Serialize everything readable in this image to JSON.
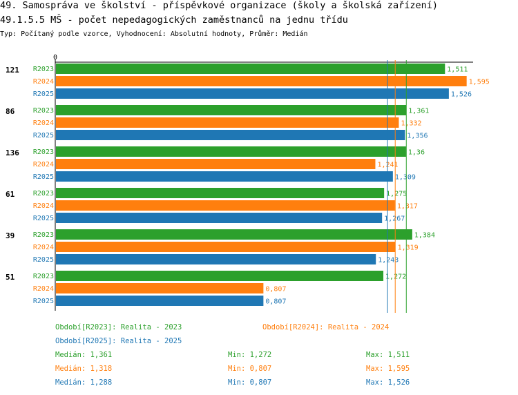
{
  "title_line1": "49. Samospráva ve školství - příspěvkové organizace (školy a školská zařízení)",
  "title_line2": "49.1.5.5 MŠ - počet nepedagogických zaměstnanců na jednu třídu",
  "subtitle": "Typ: Počítaný podle vzorce, Vyhodnocení: Absolutní hodnoty, Průměr: Medián",
  "chart_data": {
    "type": "bar",
    "orientation": "horizontal",
    "x_axis_zero_label": "0",
    "xlim": [
      0,
      1.62
    ],
    "groups": [
      "121",
      "86",
      "136",
      "61",
      "39",
      "51"
    ],
    "series": [
      {
        "name": "R2023",
        "color": "#2ca02c",
        "values": [
          1.511,
          1.361,
          1.36,
          1.275,
          1.384,
          1.272
        ],
        "labels": [
          "1,511",
          "1,361",
          "1,36",
          "1,275",
          "1,384",
          "1,272"
        ]
      },
      {
        "name": "R2024",
        "color": "#ff7f0e",
        "values": [
          1.595,
          1.332,
          1.241,
          1.317,
          1.319,
          0.807
        ],
        "labels": [
          "1,595",
          "1,332",
          "1,241",
          "1,317",
          "1,319",
          "0,807"
        ]
      },
      {
        "name": "R2025",
        "color": "#1f77b4",
        "values": [
          1.526,
          1.356,
          1.309,
          1.267,
          1.243,
          0.807
        ],
        "labels": [
          "1,526",
          "1,356",
          "1,309",
          "1,267",
          "1,243",
          "0,807"
        ]
      }
    ],
    "median_lines": [
      {
        "series": "R2023",
        "value": 1.361
      },
      {
        "series": "R2024",
        "value": 1.318
      },
      {
        "series": "R2025",
        "value": 1.288
      }
    ]
  },
  "legend": {
    "periods": [
      {
        "text": "Období[R2023]: Realita - 2023"
      },
      {
        "text": "Období[R2024]: Realita - 2024"
      },
      {
        "text": "Období[R2025]: Realita - 2025"
      }
    ],
    "stats": [
      {
        "median": "Medián: 1,361",
        "min": "Min: 1,272",
        "max": "Max: 1,511"
      },
      {
        "median": "Medián: 1,318",
        "min": "Min: 0,807",
        "max": "Max: 1,595"
      },
      {
        "median": "Medián: 1,288",
        "min": "Min: 0,807",
        "max": "Max: 1,526"
      }
    ]
  }
}
